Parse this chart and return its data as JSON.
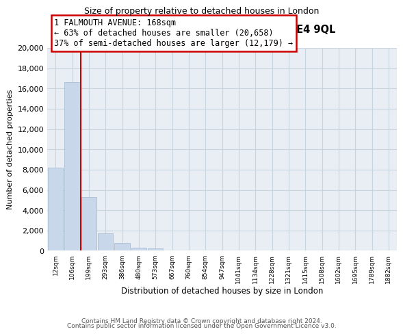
{
  "title": "1, FALMOUTH AVENUE, LONDON, E4 9QL",
  "subtitle": "Size of property relative to detached houses in London",
  "xlabel": "Distribution of detached houses by size in London",
  "ylabel": "Number of detached properties",
  "bar_color": "#c8d8ea",
  "bar_edge_color": "#aabfd4",
  "vertical_line_color": "#cc0000",
  "annotation_title": "1 FALMOUTH AVENUE: 168sqm",
  "annotation_line1": "← 63% of detached houses are smaller (20,658)",
  "annotation_line2": "37% of semi-detached houses are larger (12,179) →",
  "bins": [
    "12sqm",
    "106sqm",
    "199sqm",
    "293sqm",
    "386sqm",
    "480sqm",
    "573sqm",
    "667sqm",
    "760sqm",
    "854sqm",
    "947sqm",
    "1041sqm",
    "1134sqm",
    "1228sqm",
    "1321sqm",
    "1415sqm",
    "1508sqm",
    "1602sqm",
    "1695sqm",
    "1789sqm",
    "1882sqm"
  ],
  "values": [
    8200,
    16600,
    5300,
    1750,
    800,
    280,
    230,
    0,
    0,
    0,
    0,
    0,
    0,
    0,
    0,
    0,
    0,
    0,
    0,
    0
  ],
  "ylim": [
    0,
    20000
  ],
  "yticks": [
    0,
    2000,
    4000,
    6000,
    8000,
    10000,
    12000,
    14000,
    16000,
    18000,
    20000
  ],
  "footnote1": "Contains HM Land Registry data © Crown copyright and database right 2024.",
  "footnote2": "Contains public sector information licensed under the Open Government Licence v3.0.",
  "bg_color": "#e8eef4",
  "grid_color": "#c8d4de"
}
